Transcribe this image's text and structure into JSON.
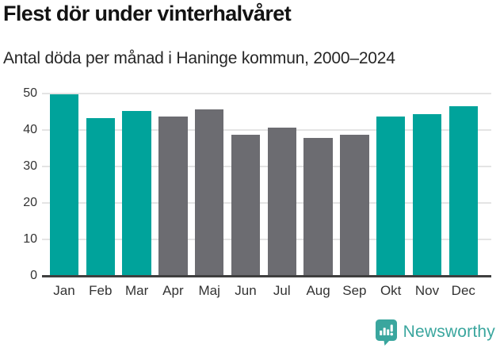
{
  "header": {
    "title": "Flest dör under vinterhalvåret",
    "subtitle": "Antal döda per månad i Haninge kommun, 2000–2024"
  },
  "chart_data": {
    "type": "bar",
    "title": "Flest dör under vinterhalvåret",
    "subtitle": "Antal döda per månad i Haninge kommun, 2000–2024",
    "categories": [
      "Jan",
      "Feb",
      "Mar",
      "Apr",
      "Maj",
      "Jun",
      "Jul",
      "Aug",
      "Sep",
      "Okt",
      "Nov",
      "Dec"
    ],
    "values": [
      49.7,
      43.2,
      45.1,
      43.7,
      45.5,
      38.6,
      40.6,
      37.8,
      38.7,
      43.6,
      44.2,
      46.4
    ],
    "highlighted_categories": [
      "Jan",
      "Feb",
      "Mar",
      "Okt",
      "Nov",
      "Dec"
    ],
    "xlabel": "",
    "ylabel": "",
    "ylim": [
      0,
      50
    ],
    "yticks": [
      0,
      10,
      20,
      30,
      40,
      50
    ],
    "grid": true,
    "legend": false,
    "colors": {
      "highlight_bar": "#00a39b",
      "muted_bar": "#6c6c71",
      "gridline": "#e4e4e4",
      "axis_line": "#3f3f3f",
      "tick_label": "#333333"
    }
  },
  "footer": {
    "brand": "Newsworthy",
    "brand_color": "#3aa69e",
    "icon": "newsworthy-chart-pin-icon"
  }
}
